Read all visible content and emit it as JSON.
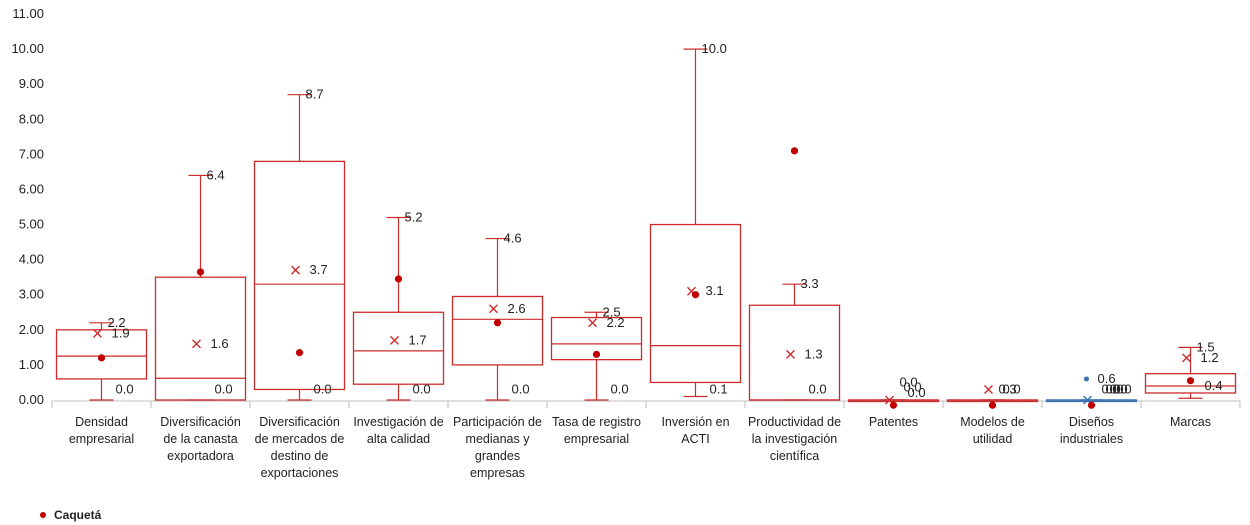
{
  "chart_data": {
    "type": "box",
    "ylim": [
      0,
      11
    ],
    "yticks": [
      "0.00",
      "1.00",
      "2.00",
      "3.00",
      "4.00",
      "5.00",
      "6.00",
      "7.00",
      "8.00",
      "9.00",
      "10.00",
      "11.00"
    ],
    "box_color": "#cc2b2b",
    "alt_box_color": "#3a6fb0",
    "point_color": "#c00000",
    "grid": false,
    "categories": [
      {
        "label": [
          "Densidad",
          "empresarial"
        ],
        "min": 0.0,
        "q1": 0.6,
        "median": 1.25,
        "q3": 2.0,
        "max": 2.2,
        "mean": 1.9,
        "point": 1.2,
        "labels": [
          {
            "text": "2.2",
            "y": 2.2
          },
          {
            "text": "1.9",
            "y": 1.9
          },
          {
            "text": "0.0",
            "y": 0.3
          }
        ]
      },
      {
        "label": [
          "Diversificación",
          "de la canasta",
          "exportadora"
        ],
        "min": 0.0,
        "q1": 0.0,
        "median": 0.62,
        "q3": 3.5,
        "max": 6.4,
        "mean": 1.6,
        "point": 3.65,
        "labels": [
          {
            "text": "6.4",
            "y": 6.4
          },
          {
            "text": "1.6",
            "y": 1.6
          },
          {
            "text": "0.0",
            "y": 0.3
          }
        ]
      },
      {
        "label": [
          "Diversificación",
          "de mercados de",
          "destino de",
          "exportaciones"
        ],
        "min": 0.0,
        "q1": 0.3,
        "median": 3.3,
        "q3": 6.8,
        "max": 8.7,
        "mean": 3.7,
        "point": 1.35,
        "labels": [
          {
            "text": "8.7",
            "y": 8.7
          },
          {
            "text": "3.7",
            "y": 3.7
          },
          {
            "text": "0.0",
            "y": 0.3
          }
        ]
      },
      {
        "label": [
          "Investigación de",
          "alta calidad"
        ],
        "min": 0.0,
        "q1": 0.45,
        "median": 1.4,
        "q3": 2.5,
        "max": 5.2,
        "mean": 1.7,
        "point": 3.45,
        "labels": [
          {
            "text": "5.2",
            "y": 5.2
          },
          {
            "text": "1.7",
            "y": 1.7
          },
          {
            "text": "0.0",
            "y": 0.3
          }
        ]
      },
      {
        "label": [
          "Participación de",
          "medianas y",
          "grandes",
          "empresas"
        ],
        "min": 0.0,
        "q1": 1.0,
        "median": 2.3,
        "q3": 2.95,
        "max": 4.6,
        "mean": 2.6,
        "point": 2.2,
        "labels": [
          {
            "text": "4.6",
            "y": 4.6
          },
          {
            "text": "2.6",
            "y": 2.6
          },
          {
            "text": "0.0",
            "y": 0.3
          }
        ]
      },
      {
        "label": [
          "Tasa de registro",
          "empresarial"
        ],
        "min": 0.0,
        "q1": 1.15,
        "median": 1.6,
        "q3": 2.35,
        "max": 2.5,
        "mean": 2.2,
        "point": 1.3,
        "labels": [
          {
            "text": "2.5",
            "y": 2.5
          },
          {
            "text": "2.2",
            "y": 2.2
          },
          {
            "text": "0.0",
            "y": 0.3
          }
        ]
      },
      {
        "label": [
          "Inversión en",
          "ACTI"
        ],
        "min": 0.1,
        "q1": 0.5,
        "median": 1.55,
        "q3": 5.0,
        "max": 10.0,
        "mean": 3.1,
        "point": 3.0,
        "labels": [
          {
            "text": "10.0",
            "y": 10.0
          },
          {
            "text": "3.1",
            "y": 3.1
          },
          {
            "text": "0.1",
            "y": 0.3
          }
        ]
      },
      {
        "label": [
          "Productividad de",
          "la investigación",
          "científica"
        ],
        "min": 0.0,
        "q1": 0.0,
        "median": 0.0,
        "q3": 2.7,
        "max": 3.3,
        "mean": 1.3,
        "point": 7.1,
        "labels": [
          {
            "text": "3.3",
            "y": 3.3
          },
          {
            "text": "1.3",
            "y": 1.3
          },
          {
            "text": "0.0",
            "y": 0.3
          }
        ]
      },
      {
        "label": [
          "Patentes"
        ],
        "min": 0.0,
        "q1": 0.0,
        "median": 0.0,
        "q3": 0.0,
        "max": 0.0,
        "mean": 0.0,
        "point": -0.15,
        "labels": [
          {
            "text": "0.0",
            "y": 0.5
          },
          {
            "text": "0.0",
            "y": 0.35
          },
          {
            "text": "0.0",
            "y": 0.2
          }
        ]
      },
      {
        "label": [
          "Modelos de",
          "utilidad"
        ],
        "min": 0.0,
        "q1": 0.0,
        "median": 0.0,
        "q3": 0.0,
        "max": 0.0,
        "mean": 0.3,
        "point": -0.15,
        "labels": [
          {
            "text": "0.3",
            "y": 0.3
          },
          {
            "text": "0.0",
            "y": 0.3
          }
        ]
      },
      {
        "label": [
          "Diseños",
          "industriales"
        ],
        "min": 0.0,
        "q1": 0.0,
        "median": 0.0,
        "q3": 0.0,
        "max": 0.0,
        "mean": 0.0,
        "point": -0.15,
        "outlier": 0.6,
        "alt_color": true,
        "labels": [
          {
            "text": "0.6",
            "y": 0.6
          },
          {
            "text": "0.0",
            "y": 0.3
          },
          {
            "text": "0.0",
            "y": 0.3
          },
          {
            "text": "0.0",
            "y": 0.3
          },
          {
            "text": "0.0",
            "y": 0.3
          }
        ]
      },
      {
        "label": [
          "Marcas"
        ],
        "min": 0.05,
        "q1": 0.2,
        "median": 0.4,
        "q3": 0.75,
        "max": 1.5,
        "mean": 1.2,
        "point": 0.55,
        "labels": [
          {
            "text": "1.5",
            "y": 1.5
          },
          {
            "text": "1.2",
            "y": 1.2
          },
          {
            "text": "0.4",
            "y": 0.4
          }
        ]
      }
    ],
    "legend": [
      {
        "name": "Caquetá",
        "color": "#c00000"
      }
    ]
  }
}
